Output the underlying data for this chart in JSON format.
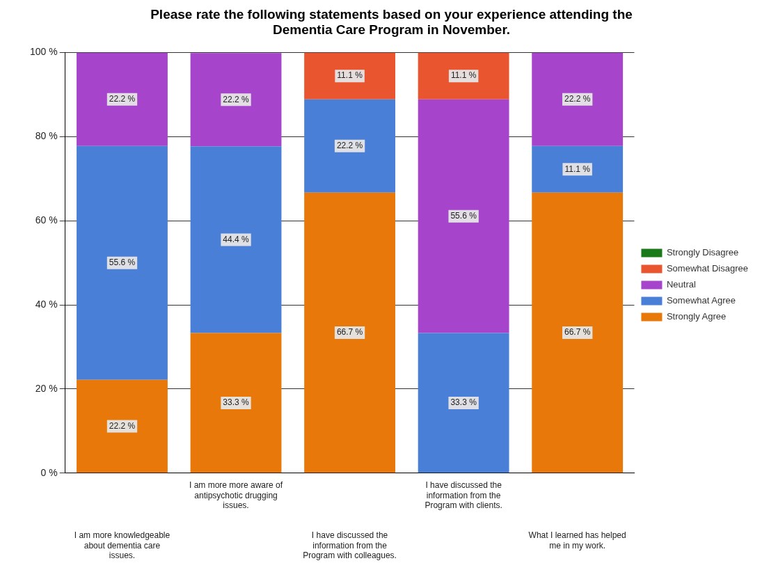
{
  "chart_data": {
    "type": "bar",
    "stacked": true,
    "title": "Please rate the following statements based on your experience attending the Dementia Care Program in November.",
    "categories": [
      "I am more knowledgeable about dementia care issues.",
      "I am more more aware of antipsychotic drugging issues.",
      "I have discussed the information from the Program with colleagues.",
      "I have discussed the information from the Program with clients.",
      "What I learned has helped me in my work."
    ],
    "series": [
      {
        "name": "Strongly Agree",
        "color": "#e8780a",
        "values": [
          22.2,
          33.3,
          66.7,
          null,
          66.7
        ],
        "value_labels": [
          "22.2 %",
          "33.3 %",
          "66.7 %",
          null,
          "66.7 %"
        ]
      },
      {
        "name": "Somewhat Agree",
        "color": "#4a7fd8",
        "values": [
          55.6,
          44.4,
          22.2,
          33.3,
          11.1
        ],
        "value_labels": [
          "55.6 %",
          "44.4 %",
          "22.2 %",
          "33.3 %",
          "11.1 %"
        ]
      },
      {
        "name": "Neutral",
        "color": "#a645cc",
        "values": [
          22.2,
          22.2,
          null,
          55.6,
          22.2
        ],
        "value_labels": [
          "22.2 %",
          "22.2 %",
          null,
          "55.6 %",
          "22.2 %"
        ]
      },
      {
        "name": "Somewhat Disagree",
        "color": "#e8552e",
        "values": [
          null,
          null,
          11.1,
          11.1,
          null
        ],
        "value_labels": [
          null,
          null,
          "11.1 %",
          "11.1 %",
          null
        ]
      },
      {
        "name": "Strongly Disagree",
        "color": "#1a7a1a",
        "values": [
          null,
          null,
          null,
          null,
          null
        ]
      }
    ],
    "ylim": [
      0,
      100
    ],
    "yticks": [
      {
        "value": 0,
        "label": "0 %"
      },
      {
        "value": 20,
        "label": "20 %"
      },
      {
        "value": 40,
        "label": "40 %"
      },
      {
        "value": 60,
        "label": "60 %"
      },
      {
        "value": 80,
        "label": "80 %"
      },
      {
        "value": 100,
        "label": "100 %"
      }
    ],
    "grid": "y",
    "legend": "right"
  }
}
